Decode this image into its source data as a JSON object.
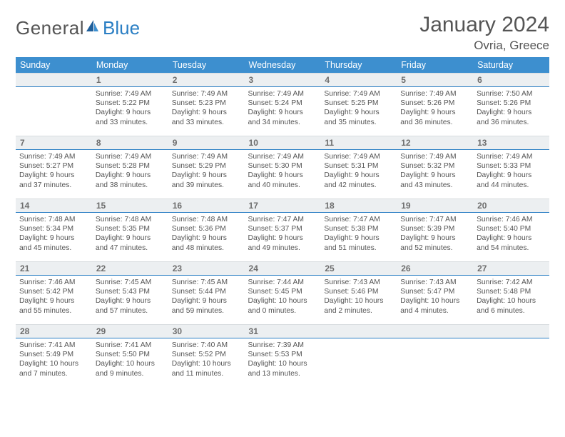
{
  "brand": {
    "part1": "General",
    "part2": "Blue"
  },
  "title": "January 2024",
  "location": "Ovria, Greece",
  "colors": {
    "header_bg": "#3d8fcf",
    "header_rule": "#2b7fc4",
    "daynum_bg": "#eceff1",
    "text": "#555555"
  },
  "weekdays": [
    "Sunday",
    "Monday",
    "Tuesday",
    "Wednesday",
    "Thursday",
    "Friday",
    "Saturday"
  ],
  "weeks": [
    [
      {
        "n": "",
        "sr": "",
        "ss": "",
        "dl": ""
      },
      {
        "n": "1",
        "sr": "Sunrise: 7:49 AM",
        "ss": "Sunset: 5:22 PM",
        "dl": "Daylight: 9 hours and 33 minutes."
      },
      {
        "n": "2",
        "sr": "Sunrise: 7:49 AM",
        "ss": "Sunset: 5:23 PM",
        "dl": "Daylight: 9 hours and 33 minutes."
      },
      {
        "n": "3",
        "sr": "Sunrise: 7:49 AM",
        "ss": "Sunset: 5:24 PM",
        "dl": "Daylight: 9 hours and 34 minutes."
      },
      {
        "n": "4",
        "sr": "Sunrise: 7:49 AM",
        "ss": "Sunset: 5:25 PM",
        "dl": "Daylight: 9 hours and 35 minutes."
      },
      {
        "n": "5",
        "sr": "Sunrise: 7:49 AM",
        "ss": "Sunset: 5:26 PM",
        "dl": "Daylight: 9 hours and 36 minutes."
      },
      {
        "n": "6",
        "sr": "Sunrise: 7:50 AM",
        "ss": "Sunset: 5:26 PM",
        "dl": "Daylight: 9 hours and 36 minutes."
      }
    ],
    [
      {
        "n": "7",
        "sr": "Sunrise: 7:49 AM",
        "ss": "Sunset: 5:27 PM",
        "dl": "Daylight: 9 hours and 37 minutes."
      },
      {
        "n": "8",
        "sr": "Sunrise: 7:49 AM",
        "ss": "Sunset: 5:28 PM",
        "dl": "Daylight: 9 hours and 38 minutes."
      },
      {
        "n": "9",
        "sr": "Sunrise: 7:49 AM",
        "ss": "Sunset: 5:29 PM",
        "dl": "Daylight: 9 hours and 39 minutes."
      },
      {
        "n": "10",
        "sr": "Sunrise: 7:49 AM",
        "ss": "Sunset: 5:30 PM",
        "dl": "Daylight: 9 hours and 40 minutes."
      },
      {
        "n": "11",
        "sr": "Sunrise: 7:49 AM",
        "ss": "Sunset: 5:31 PM",
        "dl": "Daylight: 9 hours and 42 minutes."
      },
      {
        "n": "12",
        "sr": "Sunrise: 7:49 AM",
        "ss": "Sunset: 5:32 PM",
        "dl": "Daylight: 9 hours and 43 minutes."
      },
      {
        "n": "13",
        "sr": "Sunrise: 7:49 AM",
        "ss": "Sunset: 5:33 PM",
        "dl": "Daylight: 9 hours and 44 minutes."
      }
    ],
    [
      {
        "n": "14",
        "sr": "Sunrise: 7:48 AM",
        "ss": "Sunset: 5:34 PM",
        "dl": "Daylight: 9 hours and 45 minutes."
      },
      {
        "n": "15",
        "sr": "Sunrise: 7:48 AM",
        "ss": "Sunset: 5:35 PM",
        "dl": "Daylight: 9 hours and 47 minutes."
      },
      {
        "n": "16",
        "sr": "Sunrise: 7:48 AM",
        "ss": "Sunset: 5:36 PM",
        "dl": "Daylight: 9 hours and 48 minutes."
      },
      {
        "n": "17",
        "sr": "Sunrise: 7:47 AM",
        "ss": "Sunset: 5:37 PM",
        "dl": "Daylight: 9 hours and 49 minutes."
      },
      {
        "n": "18",
        "sr": "Sunrise: 7:47 AM",
        "ss": "Sunset: 5:38 PM",
        "dl": "Daylight: 9 hours and 51 minutes."
      },
      {
        "n": "19",
        "sr": "Sunrise: 7:47 AM",
        "ss": "Sunset: 5:39 PM",
        "dl": "Daylight: 9 hours and 52 minutes."
      },
      {
        "n": "20",
        "sr": "Sunrise: 7:46 AM",
        "ss": "Sunset: 5:40 PM",
        "dl": "Daylight: 9 hours and 54 minutes."
      }
    ],
    [
      {
        "n": "21",
        "sr": "Sunrise: 7:46 AM",
        "ss": "Sunset: 5:42 PM",
        "dl": "Daylight: 9 hours and 55 minutes."
      },
      {
        "n": "22",
        "sr": "Sunrise: 7:45 AM",
        "ss": "Sunset: 5:43 PM",
        "dl": "Daylight: 9 hours and 57 minutes."
      },
      {
        "n": "23",
        "sr": "Sunrise: 7:45 AM",
        "ss": "Sunset: 5:44 PM",
        "dl": "Daylight: 9 hours and 59 minutes."
      },
      {
        "n": "24",
        "sr": "Sunrise: 7:44 AM",
        "ss": "Sunset: 5:45 PM",
        "dl": "Daylight: 10 hours and 0 minutes."
      },
      {
        "n": "25",
        "sr": "Sunrise: 7:43 AM",
        "ss": "Sunset: 5:46 PM",
        "dl": "Daylight: 10 hours and 2 minutes."
      },
      {
        "n": "26",
        "sr": "Sunrise: 7:43 AM",
        "ss": "Sunset: 5:47 PM",
        "dl": "Daylight: 10 hours and 4 minutes."
      },
      {
        "n": "27",
        "sr": "Sunrise: 7:42 AM",
        "ss": "Sunset: 5:48 PM",
        "dl": "Daylight: 10 hours and 6 minutes."
      }
    ],
    [
      {
        "n": "28",
        "sr": "Sunrise: 7:41 AM",
        "ss": "Sunset: 5:49 PM",
        "dl": "Daylight: 10 hours and 7 minutes."
      },
      {
        "n": "29",
        "sr": "Sunrise: 7:41 AM",
        "ss": "Sunset: 5:50 PM",
        "dl": "Daylight: 10 hours and 9 minutes."
      },
      {
        "n": "30",
        "sr": "Sunrise: 7:40 AM",
        "ss": "Sunset: 5:52 PM",
        "dl": "Daylight: 10 hours and 11 minutes."
      },
      {
        "n": "31",
        "sr": "Sunrise: 7:39 AM",
        "ss": "Sunset: 5:53 PM",
        "dl": "Daylight: 10 hours and 13 minutes."
      },
      {
        "n": "",
        "sr": "",
        "ss": "",
        "dl": ""
      },
      {
        "n": "",
        "sr": "",
        "ss": "",
        "dl": ""
      },
      {
        "n": "",
        "sr": "",
        "ss": "",
        "dl": ""
      }
    ]
  ]
}
